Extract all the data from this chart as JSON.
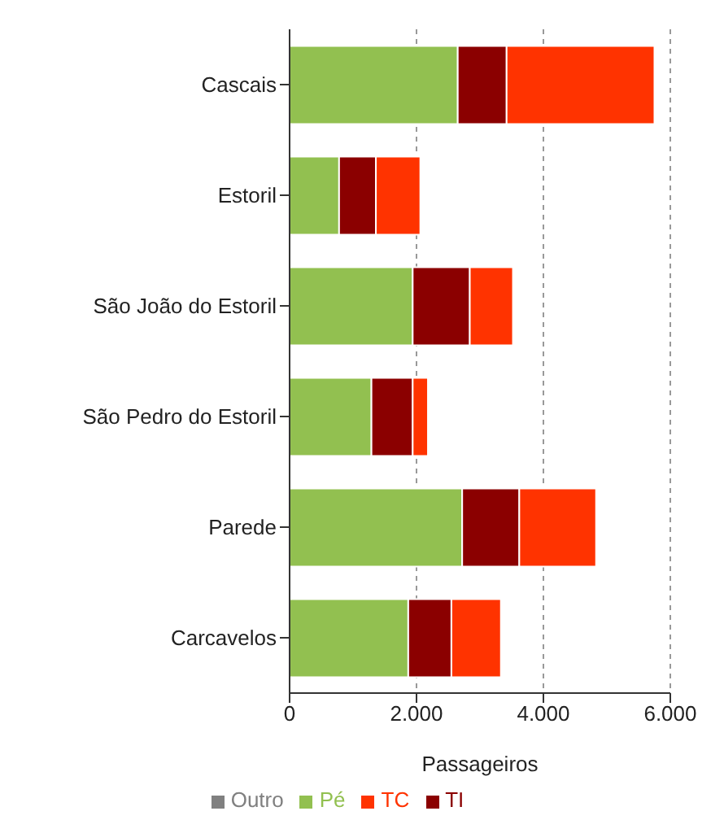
{
  "chart_data": {
    "type": "bar",
    "orientation": "horizontal",
    "stacked": true,
    "xlabel": "Passageiros",
    "categories": [
      "Cascais",
      "Estoril",
      "São João do Estoril",
      "São Pedro do Estoril",
      "Parede",
      "Carcavelos"
    ],
    "series": [
      {
        "name": "Pé",
        "color": "#92c050",
        "values": [
          2650,
          780,
          1940,
          1290,
          2720,
          1870
        ]
      },
      {
        "name": "TI",
        "color": "#8b0000",
        "values": [
          770,
          580,
          900,
          650,
          900,
          680
        ]
      },
      {
        "name": "TC",
        "color": "#ff3300",
        "values": [
          2330,
          700,
          680,
          240,
          1210,
          780
        ]
      },
      {
        "name": "Outro",
        "color": "#808080",
        "values": [
          0,
          0,
          0,
          0,
          0,
          0
        ]
      }
    ],
    "xlim": [
      0,
      6000
    ],
    "xticks": [
      0,
      {
        "value": 2000,
        "label": "2.000"
      },
      {
        "value": 4000,
        "label": "4.000"
      },
      {
        "value": 6000,
        "label": "6.000"
      }
    ],
    "grid": "x",
    "legend": "bottom"
  }
}
